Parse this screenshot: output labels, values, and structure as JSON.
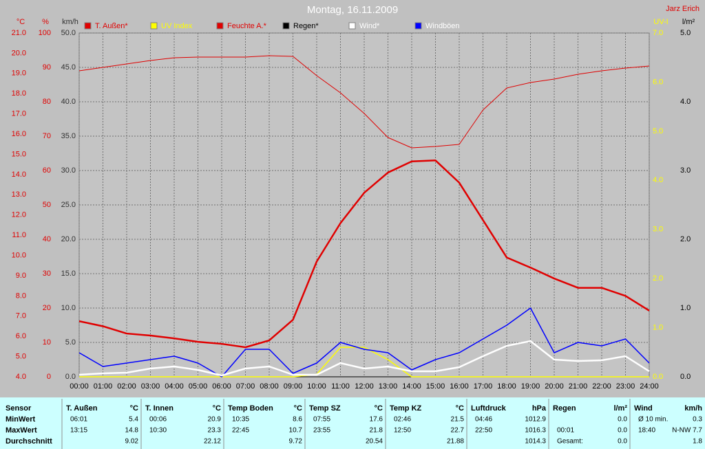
{
  "chart_data": {
    "type": "line",
    "title": "Montag, 16.11.2009",
    "author": "Jarz Erich",
    "x": [
      0,
      1,
      2,
      3,
      4,
      5,
      6,
      7,
      8,
      9,
      10,
      11,
      12,
      13,
      14,
      15,
      16,
      17,
      18,
      19,
      20,
      21,
      22,
      23,
      24
    ],
    "xlim": [
      0,
      24
    ],
    "xticks": [
      {
        "value": 0,
        "label": "00:00"
      },
      {
        "value": 1,
        "label": "01:00"
      },
      {
        "value": 2,
        "label": "02:00"
      },
      {
        "value": 3,
        "label": "03:00"
      },
      {
        "value": 4,
        "label": "04:00"
      },
      {
        "value": 5,
        "label": "05:00"
      },
      {
        "value": 6,
        "label": "06:00"
      },
      {
        "value": 7,
        "label": "07:00"
      },
      {
        "value": 8,
        "label": "08:00"
      },
      {
        "value": 9,
        "label": "09:00"
      },
      {
        "value": 10,
        "label": "10:00"
      },
      {
        "value": 11,
        "label": "11:00"
      },
      {
        "value": 12,
        "label": "12:00"
      },
      {
        "value": 13,
        "label": "13:00"
      },
      {
        "value": 14,
        "label": "14:00"
      },
      {
        "value": 15,
        "label": "15:00"
      },
      {
        "value": 16,
        "label": "16:00"
      },
      {
        "value": 17,
        "label": "17:00"
      },
      {
        "value": 18,
        "label": "18:00"
      },
      {
        "value": 19,
        "label": "19:00"
      },
      {
        "value": 20,
        "label": "20:00"
      },
      {
        "value": 21,
        "label": "21:00"
      },
      {
        "value": 22,
        "label": "22:00"
      },
      {
        "value": 23,
        "label": "23:00"
      },
      {
        "value": 24,
        "label": "24:00"
      }
    ],
    "grid": true,
    "axes": [
      {
        "label": "°C",
        "color": "#e00000",
        "side": "left",
        "lim": [
          4,
          21
        ],
        "ticks": [
          {
            "value": 4,
            "label": "4.0"
          },
          {
            "value": 5,
            "label": "5.0"
          },
          {
            "value": 6,
            "label": "6.0"
          },
          {
            "value": 7,
            "label": "7.0"
          },
          {
            "value": 8,
            "label": "8.0"
          },
          {
            "value": 9,
            "label": "9.0"
          },
          {
            "value": 10,
            "label": "10.0"
          },
          {
            "value": 11,
            "label": "11.0"
          },
          {
            "value": 12,
            "label": "12.0"
          },
          {
            "value": 13,
            "label": "13.0"
          },
          {
            "value": 14,
            "label": "14.0"
          },
          {
            "value": 15,
            "label": "15.0"
          },
          {
            "value": 16,
            "label": "16.0"
          },
          {
            "value": 17,
            "label": "17.0"
          },
          {
            "value": 18,
            "label": "18.0"
          },
          {
            "value": 19,
            "label": "19.0"
          },
          {
            "value": 20,
            "label": "20.0"
          },
          {
            "value": 21,
            "label": "21.0"
          }
        ]
      },
      {
        "label": "%",
        "color": "#e00000",
        "side": "left",
        "lim": [
          0,
          100
        ],
        "ticks": [
          0,
          10,
          20,
          30,
          40,
          50,
          60,
          70,
          80,
          90,
          100
        ]
      },
      {
        "label": "km/h",
        "color": "#303030",
        "side": "left",
        "lim": [
          0,
          50
        ],
        "ticks": [
          {
            "value": 0,
            "label": "0.0"
          },
          {
            "value": 5,
            "label": "5.0"
          },
          {
            "value": 10,
            "label": "10.0"
          },
          {
            "value": 15,
            "label": "15.0"
          },
          {
            "value": 20,
            "label": "20.0"
          },
          {
            "value": 25,
            "label": "25.0"
          },
          {
            "value": 30,
            "label": "30.0"
          },
          {
            "value": 35,
            "label": "35.0"
          },
          {
            "value": 40,
            "label": "40.0"
          },
          {
            "value": 45,
            "label": "45.0"
          },
          {
            "value": 50,
            "label": "50.0"
          }
        ]
      },
      {
        "label": "UV-I",
        "color": "#ffff00",
        "side": "right",
        "lim": [
          0,
          7
        ],
        "ticks": [
          {
            "value": 0,
            "label": "0.0"
          },
          {
            "value": 1,
            "label": "1.0"
          },
          {
            "value": 2,
            "label": "2.0"
          },
          {
            "value": 3,
            "label": "3.0"
          },
          {
            "value": 4,
            "label": "4.0"
          },
          {
            "value": 5,
            "label": "5.0"
          },
          {
            "value": 6,
            "label": "6.0"
          },
          {
            "value": 7,
            "label": "7.0"
          }
        ]
      },
      {
        "label": "l/m²",
        "color": "#000000",
        "side": "right",
        "lim": [
          0,
          5
        ],
        "ticks": [
          {
            "value": 0,
            "label": "0.0"
          },
          {
            "value": 1,
            "label": "1.0"
          },
          {
            "value": 2,
            "label": "2.0"
          },
          {
            "value": 3,
            "label": "3.0"
          },
          {
            "value": 4,
            "label": "4.0"
          },
          {
            "value": 5,
            "label": "5.0"
          }
        ]
      }
    ],
    "series": [
      {
        "name": "T. Außen*",
        "color": "#e00000",
        "axis": 0,
        "width": 2.5,
        "values": [
          6.75,
          6.5,
          6.14,
          6.04,
          5.9,
          5.73,
          5.63,
          5.46,
          5.8,
          6.82,
          9.7,
          11.6,
          13.1,
          14.1,
          14.65,
          14.7,
          13.6,
          11.75,
          9.9,
          9.4,
          8.86,
          8.4,
          8.4,
          8.0,
          7.27
        ]
      },
      {
        "name": "UV Index",
        "color": "#ffff00",
        "axis": 3,
        "width": 1.5,
        "values": [
          0,
          0,
          0,
          0,
          0,
          0,
          0,
          0,
          0,
          0,
          0.05,
          0.6,
          0.6,
          0.35,
          0,
          0,
          0,
          0,
          0,
          0,
          0,
          0,
          0,
          0,
          0
        ]
      },
      {
        "name": "Feuchte A.*",
        "color": "#e00000",
        "axis": 1,
        "width": 1,
        "values": [
          89,
          90,
          91,
          92,
          92.8,
          93,
          93,
          93,
          93.4,
          93.2,
          87.6,
          82.6,
          76.6,
          69.6,
          66.6,
          67,
          67.6,
          77.6,
          84,
          85.6,
          86.6,
          88,
          89,
          89.8,
          90.4
        ]
      },
      {
        "name": "Regen*",
        "color": "#000000",
        "axis": 4,
        "width": 1,
        "values": [
          0,
          0,
          0,
          0,
          0,
          0,
          0,
          0,
          0,
          0,
          0,
          0,
          0,
          0,
          0,
          0,
          0,
          0,
          0,
          0,
          0,
          0,
          0,
          0,
          0
        ]
      },
      {
        "name": "Wind*",
        "color": "#ffffff",
        "axis": 2,
        "width": 2.5,
        "values": [
          0.3,
          0.5,
          0.6,
          1.2,
          1.5,
          1.0,
          0.2,
          1.2,
          1.5,
          0.3,
          0.3,
          2.0,
          1.2,
          1.5,
          0.8,
          0.8,
          1.4,
          3.0,
          4.5,
          5.2,
          2.5,
          2.3,
          2.4,
          3.0,
          0.8
        ]
      },
      {
        "name": "Windböen",
        "color": "#0000ff",
        "axis": 2,
        "width": 1.5,
        "values": [
          3.5,
          1.5,
          2.0,
          2.5,
          3.0,
          2.0,
          0.0,
          4.0,
          4.0,
          0.5,
          2.0,
          5.0,
          4.0,
          3.5,
          1.0,
          2.5,
          3.5,
          5.5,
          7.5,
          10.0,
          3.5,
          5.0,
          4.5,
          5.5,
          2.0
        ]
      }
    ]
  },
  "table": {
    "sensor": "Sensor",
    "row_labels": [
      "MinWert",
      "MaxWert",
      "Durchschnitt"
    ],
    "groups": [
      {
        "name": "T. Außen",
        "unit": "°C",
        "cells": [
          [
            "06:01",
            "5.4"
          ],
          [
            "13:15",
            "14.8"
          ],
          [
            "9.02"
          ]
        ]
      },
      {
        "name": "T. Innen",
        "unit": "°C",
        "cells": [
          [
            "00:06",
            "20.9"
          ],
          [
            "10:30",
            "23.3"
          ],
          [
            "22.12"
          ]
        ]
      },
      {
        "name": "Temp Boden",
        "unit": "°C",
        "cells": [
          [
            "10:35",
            "8.6"
          ],
          [
            "22:45",
            "10.7"
          ],
          [
            "9.72"
          ]
        ]
      },
      {
        "name": "Temp SZ",
        "unit": "°C",
        "cells": [
          [
            "07:55",
            "17.6"
          ],
          [
            "23:55",
            "21.8"
          ],
          [
            "20.54"
          ]
        ]
      },
      {
        "name": "Temp KZ",
        "unit": "°C",
        "cells": [
          [
            "02:46",
            "21.5"
          ],
          [
            "12:50",
            "22.7"
          ],
          [
            "21.88"
          ]
        ]
      },
      {
        "name": "Luftdruck",
        "unit": "hPa",
        "cells": [
          [
            "04:46",
            "1012.9"
          ],
          [
            "22:50",
            "1016.3"
          ],
          [
            "1014.3"
          ]
        ]
      },
      {
        "name": "Regen",
        "unit": "l/m²",
        "cells": [
          [
            "0.0"
          ],
          [
            "00:01",
            "0.0"
          ],
          [
            "Gesamt:",
            "0.0"
          ]
        ]
      },
      {
        "name": "Wind",
        "unit": "km/h",
        "cells": [
          [
            "Ø 10 min.",
            "0.3"
          ],
          [
            "18:40",
            "N-NW 7.7"
          ],
          [
            "1.8"
          ]
        ]
      }
    ]
  }
}
